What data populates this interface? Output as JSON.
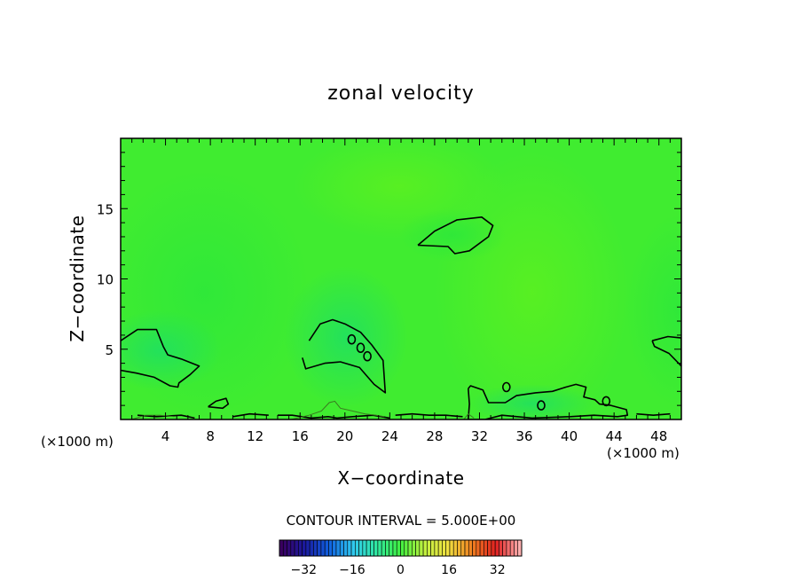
{
  "chart_data": {
    "type": "heatmap",
    "title": "zonal velocity",
    "xlabel": "X−coordinate",
    "ylabel": "Z−coordinate",
    "x_unit_left": "(×1000 m)",
    "x_unit_right": "(×1000 m)",
    "xlim": [
      0,
      50
    ],
    "ylim": [
      0,
      20
    ],
    "x_ticks": [
      4,
      8,
      12,
      16,
      20,
      24,
      28,
      32,
      36,
      40,
      44,
      48
    ],
    "x_tick_labels": [
      "4",
      "8",
      "12",
      "16",
      "20",
      "24",
      "28",
      "32",
      "36",
      "40",
      "44",
      "48"
    ],
    "y_ticks": [
      5,
      10,
      15
    ],
    "y_tick_labels": [
      "5",
      "10",
      "15"
    ],
    "field_value_range": [
      -5,
      5
    ],
    "contour_interval_label": "CONTOUR INTERVAL = 5.000E+00",
    "colorbar": {
      "range": [
        -40,
        40
      ],
      "ticks": [
        -32,
        -16,
        0,
        16,
        32
      ],
      "tick_labels": [
        "−32",
        "−16",
        "0",
        "16",
        "32"
      ],
      "colormap": [
        "#3a0060",
        "#1a1aa0",
        "#1060e0",
        "#30c8f0",
        "#30e8a0",
        "#40f040",
        "#c0f040",
        "#f0e040",
        "#f08020",
        "#e02020",
        "#ffb0b0"
      ]
    },
    "contour_lines_value": 5,
    "contours": [
      [
        [
          0,
          5.6
        ],
        [
          1.5,
          6.4
        ],
        [
          3.2,
          6.4
        ],
        [
          3.8,
          5.2
        ],
        [
          4.2,
          4.6
        ],
        [
          5.4,
          4.3
        ],
        [
          7,
          3.8
        ],
        [
          6.2,
          3.2
        ],
        [
          5.2,
          2.6
        ],
        [
          5.1,
          2.3
        ],
        [
          4.4,
          2.4
        ],
        [
          3,
          3.0
        ],
        [
          1.4,
          3.3
        ],
        [
          0,
          3.5
        ]
      ],
      [
        [
          16.8,
          5.6
        ],
        [
          17.8,
          6.8
        ],
        [
          18.9,
          7.1
        ],
        [
          20,
          6.8
        ],
        [
          21.4,
          6.2
        ],
        [
          22.4,
          5.3
        ],
        [
          23.4,
          4.2
        ],
        [
          23.6,
          1.9
        ],
        [
          22.6,
          2.5
        ],
        [
          21.3,
          3.7
        ],
        [
          19.6,
          4.1
        ],
        [
          18.2,
          4.0
        ],
        [
          16.5,
          3.6
        ],
        [
          16.2,
          4.4
        ]
      ],
      [
        [
          26.5,
          12.4
        ],
        [
          28,
          13.4
        ],
        [
          30,
          14.2
        ],
        [
          32.2,
          14.4
        ],
        [
          33.2,
          13.8
        ],
        [
          32.8,
          13.0
        ],
        [
          31.1,
          12.0
        ],
        [
          29.8,
          11.8
        ],
        [
          29.2,
          12.3
        ],
        [
          26.5,
          12.4
        ]
      ],
      [
        [
          0,
          3.5
        ],
        [
          0,
          3.5
        ]
      ],
      [
        [
          47.4,
          5.6
        ],
        [
          48.8,
          5.9
        ],
        [
          50,
          5.8
        ],
        [
          50,
          3.8
        ],
        [
          48.9,
          4.7
        ],
        [
          47.6,
          5.2
        ],
        [
          47.4,
          5.6
        ]
      ],
      [
        [
          31.0,
          2.2
        ],
        [
          31.2,
          2.4
        ],
        [
          32.3,
          2.1
        ],
        [
          32.8,
          1.2
        ],
        [
          34.3,
          1.2
        ],
        [
          35.3,
          1.7
        ],
        [
          37.0,
          1.9
        ],
        [
          38.5,
          2.0
        ],
        [
          39.7,
          2.3
        ],
        [
          40.6,
          2.5
        ],
        [
          41.5,
          2.3
        ],
        [
          41.3,
          1.6
        ],
        [
          42.3,
          1.4
        ],
        [
          42.7,
          1.1
        ],
        [
          43.7,
          1.0
        ],
        [
          45.1,
          0.7
        ],
        [
          45.2,
          0.3
        ],
        [
          44.3,
          0.2
        ],
        [
          42.2,
          0.3
        ],
        [
          40.1,
          0.2
        ],
        [
          36.7,
          0.1
        ],
        [
          34.0,
          0.3
        ],
        [
          32.5,
          0.0
        ],
        [
          31.0,
          0.0
        ],
        [
          31.1,
          1.1
        ],
        [
          31.0,
          2.2
        ]
      ],
      [
        [
          7.8,
          0.9
        ],
        [
          8.5,
          1.3
        ],
        [
          9.4,
          1.5
        ],
        [
          9.6,
          1.1
        ],
        [
          9.1,
          0.8
        ],
        [
          7.8,
          0.9
        ]
      ],
      [
        [
          14.0,
          0.3
        ],
        [
          15.3,
          0.3
        ],
        [
          17.0,
          0.1
        ],
        [
          18.5,
          0.2
        ],
        [
          19.3,
          0.1
        ],
        [
          20.7,
          0.2
        ],
        [
          22.5,
          0.3
        ],
        [
          24.0,
          0.1
        ]
      ],
      [
        [
          24.5,
          0.3
        ],
        [
          26.0,
          0.4
        ],
        [
          27.5,
          0.3
        ],
        [
          29.0,
          0.3
        ],
        [
          30.5,
          0.2
        ]
      ],
      [
        [
          1.5,
          0.3
        ],
        [
          3.2,
          0.2
        ],
        [
          5.4,
          0.3
        ],
        [
          6.6,
          0.1
        ]
      ],
      [
        [
          10.0,
          0.2
        ],
        [
          11.5,
          0.4
        ],
        [
          13.2,
          0.3
        ]
      ],
      [
        [
          46.0,
          0.4
        ],
        [
          47.5,
          0.3
        ],
        [
          49.0,
          0.4
        ]
      ]
    ],
    "small_contours": [
      [
        20.6,
        5.7
      ],
      [
        21.4,
        5.1
      ],
      [
        22.0,
        4.5
      ],
      [
        34.4,
        2.3
      ],
      [
        37.5,
        1.0
      ],
      [
        43.3,
        1.3
      ]
    ],
    "thin_contours": [
      [
        [
          15.2,
          0.0
        ],
        [
          16.8,
          0.3
        ],
        [
          17.9,
          0.6
        ],
        [
          18.6,
          1.2
        ],
        [
          19.1,
          1.3
        ],
        [
          19.6,
          0.8
        ],
        [
          20.7,
          0.6
        ],
        [
          21.8,
          0.4
        ],
        [
          22.8,
          0.3
        ],
        [
          23.5,
          0.2
        ]
      ],
      [
        [
          1.0,
          0.0
        ],
        [
          2.2,
          0.3
        ],
        [
          3.5,
          0.3
        ],
        [
          4.8,
          0.2
        ]
      ],
      [
        [
          30.6,
          0.0
        ],
        [
          31.0,
          0.4
        ],
        [
          31.5,
          0.1
        ]
      ]
    ]
  }
}
